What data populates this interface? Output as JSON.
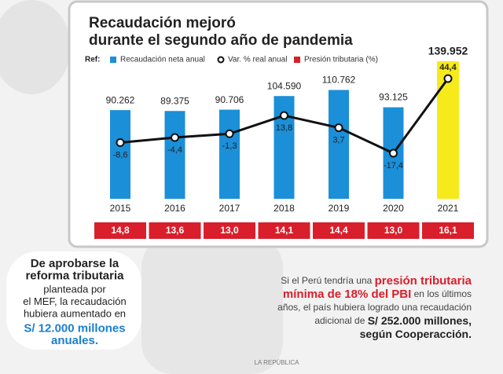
{
  "chart_data": {
    "type": "bar-line-table",
    "title": [
      "Recaudación mejoró",
      "durante el segundo año de pandemia"
    ],
    "legend_label": "Ref:",
    "categories": [
      "2015",
      "2016",
      "2017",
      "2018",
      "2019",
      "2020",
      "2021"
    ],
    "series": [
      {
        "name": "Recaudación neta anual",
        "color": "#1b8fd8",
        "colors": [
          "#1b8fd8",
          "#1b8fd8",
          "#1b8fd8",
          "#1b8fd8",
          "#1b8fd8",
          "#1b8fd8",
          "#f7ea1a"
        ],
        "values": [
          90262,
          89375,
          90706,
          104590,
          110762,
          93125,
          139952
        ],
        "value_labels": [
          "90.262",
          "89.375",
          "90.706",
          "104.590",
          "110.762",
          "93.125",
          "139.952"
        ]
      },
      {
        "name": "Var. % real anual",
        "color": "#111111",
        "values": [
          -8.6,
          -4.4,
          -1.3,
          13.8,
          3.7,
          -17.4,
          44.4
        ],
        "value_labels": [
          "-8,6",
          "-4,4",
          "-1,3",
          "13,8",
          "3,7",
          "-17,4",
          "44,4"
        ]
      },
      {
        "name": "Presión tributaria (%)",
        "color": "#d91f2b",
        "values": [
          14.8,
          13.6,
          13.0,
          14.1,
          14.4,
          13.0,
          16.1
        ],
        "value_labels": [
          "14,8",
          "13,6",
          "13,0",
          "14,1",
          "14,4",
          "13,0",
          "16,1"
        ]
      }
    ]
  },
  "left_note": {
    "lines": [
      "De aprobarse la",
      "reforma tributaria",
      "planteada por",
      "el MEF, la recaudación",
      "hubiera aumentado en",
      "S/ 12.000 millones",
      "anuales."
    ]
  },
  "right_note": {
    "lines": [
      [
        "Si el Perú tendría una ",
        "presión tributaria"
      ],
      [
        "mínima de 18% del PBI",
        " en los últimos"
      ],
      [
        "años, el país hubiera logrado una recaudación"
      ],
      [
        "adicional de ",
        "S/ 252.000 millones,"
      ],
      [
        "según Cooperacción."
      ]
    ]
  },
  "footer": "LA REPÚBLICA"
}
